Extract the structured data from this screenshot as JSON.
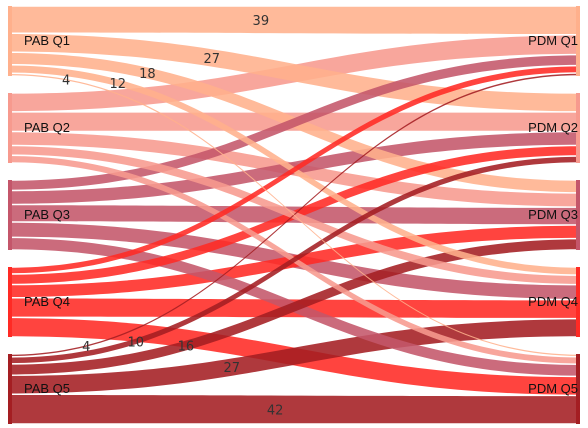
{
  "chart_data": {
    "type": "sankey",
    "sources": [
      "PAB Q1",
      "PAB Q2",
      "PAB Q3",
      "PAB Q4",
      "PAB Q5"
    ],
    "targets": [
      "PDM Q1",
      "PDM Q2",
      "PDM Q3",
      "PDM Q4",
      "PDM Q5"
    ],
    "colors": [
      "#ffb08c",
      "#f79a8e",
      "#c4566a",
      "#ff2a24",
      "#a41e22"
    ],
    "flows": [
      [
        39,
        27,
        18,
        12,
        4
      ],
      [
        27,
        28,
        20,
        14,
        11
      ],
      [
        15,
        20,
        25,
        22,
        18
      ],
      [
        10,
        15,
        19,
        28,
        28
      ],
      [
        4,
        10,
        16,
        27,
        42
      ]
    ],
    "labels": [
      {
        "source": 0,
        "target": 0,
        "text": "39"
      },
      {
        "source": 0,
        "target": 1,
        "text": "27"
      },
      {
        "source": 0,
        "target": 2,
        "text": "18"
      },
      {
        "source": 0,
        "target": 3,
        "text": "12"
      },
      {
        "source": 0,
        "target": 4,
        "text": "4"
      },
      {
        "source": 4,
        "target": 0,
        "text": "4"
      },
      {
        "source": 4,
        "target": 1,
        "text": "10"
      },
      {
        "source": 4,
        "target": 2,
        "text": "16"
      },
      {
        "source": 4,
        "target": 3,
        "text": "27"
      },
      {
        "source": 4,
        "target": 4,
        "text": "42"
      }
    ]
  }
}
